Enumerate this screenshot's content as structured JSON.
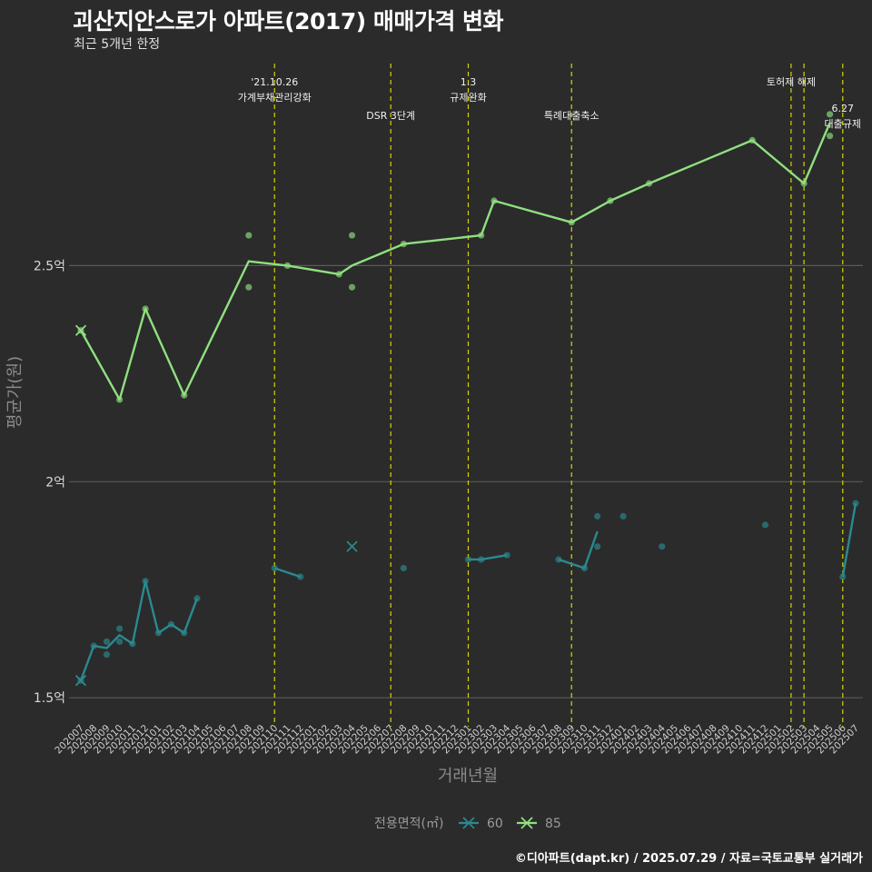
{
  "title": "괴산지안스로가 아파트(2017) 매매가격 변화",
  "subtitle": "최근 5개년 한정",
  "caption": "©디아파트(dapt.kr) / 2025.07.29 / 자료=국토교통부 실거래가",
  "colors": {
    "background": "#2b2b2b",
    "grid": "#5a5a5a",
    "event_line": "#d4d400",
    "series_60": "#2a8a8f",
    "series_85": "#8fe07f"
  },
  "chart_data": {
    "type": "line",
    "title": "괴산지안스로가 아파트(2017) 매매가격 변화",
    "xlabel": "거래년월",
    "ylabel": "평균가(원)",
    "ylim": [
      1.45,
      2.98
    ],
    "y_ticks": [
      {
        "value": 1.5,
        "label": "1.5억"
      },
      {
        "value": 2.0,
        "label": "2억"
      },
      {
        "value": 2.5,
        "label": "2.5억"
      }
    ],
    "categories": [
      "202007",
      "202008",
      "202009",
      "202010",
      "202011",
      "202012",
      "202101",
      "202102",
      "202103",
      "202104",
      "202105",
      "202106",
      "202107",
      "202108",
      "202109",
      "202110",
      "202111",
      "202112",
      "202201",
      "202202",
      "202203",
      "202204",
      "202205",
      "202206",
      "202207",
      "202208",
      "202209",
      "202210",
      "202211",
      "202212",
      "202301",
      "202302",
      "202303",
      "202304",
      "202305",
      "202306",
      "202307",
      "202308",
      "202309",
      "202310",
      "202311",
      "202312",
      "202401",
      "202402",
      "202403",
      "202404",
      "202405",
      "202406",
      "202407",
      "202408",
      "202409",
      "202410",
      "202411",
      "202412",
      "202501",
      "202502",
      "202503",
      "202504",
      "202505",
      "202506",
      "202507"
    ],
    "legend": {
      "title": "전용면적(㎡)",
      "position": "bottom"
    },
    "events": [
      {
        "x": "202110",
        "label_lines": [
          "'21.10.26",
          "가계부채관리강화"
        ],
        "level": 1
      },
      {
        "x": "202207",
        "label_lines": [
          "DSR 3단계"
        ],
        "level": 2
      },
      {
        "x": "202301",
        "label_lines": [
          "1.3",
          "규제완화"
        ],
        "level": 1
      },
      {
        "x": "202309",
        "label_lines": [
          "특례대출축소"
        ],
        "level": 2
      },
      {
        "x": "202502",
        "label_lines": [
          "토허제 해제"
        ],
        "level": 1
      },
      {
        "x": "202503",
        "label_lines": [],
        "level": 0
      },
      {
        "x": "202506",
        "label_lines": [
          "6.27",
          "대출규제"
        ],
        "level": 3
      }
    ],
    "series": [
      {
        "name": "60",
        "segments": [
          [
            [
              "202007",
              1.54
            ],
            [
              "202008",
              1.62
            ],
            [
              "202009",
              1.615
            ],
            [
              "202010",
              1.645
            ],
            [
              "202011",
              1.625
            ],
            [
              "202012",
              1.77
            ],
            [
              "202101",
              1.65
            ],
            [
              "202102",
              1.67
            ],
            [
              "202103",
              1.65
            ],
            [
              "202104",
              1.73
            ]
          ],
          [
            [
              "202110",
              1.8
            ],
            [
              "202112",
              1.78
            ]
          ],
          [
            [
              "202301",
              1.82
            ],
            [
              "202302",
              1.82
            ],
            [
              "202304",
              1.83
            ]
          ],
          [
            [
              "202308",
              1.82
            ],
            [
              "202310",
              1.8
            ],
            [
              "202311",
              1.885
            ]
          ],
          [
            [
              "202506",
              1.78
            ],
            [
              "202507",
              1.95
            ]
          ]
        ],
        "points": [
          [
            "202007",
            1.54
          ],
          [
            "202008",
            1.62
          ],
          [
            "202009",
            1.63
          ],
          [
            "202009",
            1.6
          ],
          [
            "202010",
            1.66
          ],
          [
            "202010",
            1.63
          ],
          [
            "202011",
            1.625
          ],
          [
            "202012",
            1.77
          ],
          [
            "202101",
            1.65
          ],
          [
            "202102",
            1.67
          ],
          [
            "202103",
            1.65
          ],
          [
            "202104",
            1.73
          ],
          [
            "202110",
            1.8
          ],
          [
            "202112",
            1.78
          ],
          [
            "202208",
            1.8
          ],
          [
            "202301",
            1.82
          ],
          [
            "202302",
            1.82
          ],
          [
            "202304",
            1.83
          ],
          [
            "202308",
            1.82
          ],
          [
            "202310",
            1.8
          ],
          [
            "202311",
            1.92
          ],
          [
            "202311",
            1.85
          ],
          [
            "202401",
            1.92
          ],
          [
            "202404",
            1.85
          ],
          [
            "202412",
            1.9
          ],
          [
            "202506",
            1.78
          ],
          [
            "202507",
            1.95
          ]
        ],
        "x_markers": [
          [
            "202007",
            1.54
          ],
          [
            "202204",
            1.85
          ]
        ]
      },
      {
        "name": "85",
        "segments": [
          [
            [
              "202007",
              2.35
            ],
            [
              "202010",
              2.19
            ],
            [
              "202012",
              2.4
            ],
            [
              "202103",
              2.2
            ],
            [
              "202108",
              2.51
            ],
            [
              "202111",
              2.5
            ],
            [
              "202203",
              2.48
            ],
            [
              "202204",
              2.5
            ],
            [
              "202208",
              2.55
            ],
            [
              "202302",
              2.57
            ],
            [
              "202303",
              2.65
            ],
            [
              "202309",
              2.6
            ],
            [
              "202312",
              2.65
            ],
            [
              "202403",
              2.69
            ],
            [
              "202411",
              2.79
            ],
            [
              "202503",
              2.69
            ],
            [
              "202505",
              2.83
            ]
          ]
        ],
        "points": [
          [
            "202007",
            2.35
          ],
          [
            "202010",
            2.19
          ],
          [
            "202012",
            2.4
          ],
          [
            "202103",
            2.2
          ],
          [
            "202108",
            2.57
          ],
          [
            "202108",
            2.45
          ],
          [
            "202111",
            2.5
          ],
          [
            "202203",
            2.48
          ],
          [
            "202204",
            2.57
          ],
          [
            "202204",
            2.45
          ],
          [
            "202208",
            2.55
          ],
          [
            "202302",
            2.57
          ],
          [
            "202303",
            2.65
          ],
          [
            "202309",
            2.6
          ],
          [
            "202312",
            2.65
          ],
          [
            "202403",
            2.69
          ],
          [
            "202411",
            2.79
          ],
          [
            "202503",
            2.69
          ],
          [
            "202505",
            2.85
          ],
          [
            "202505",
            2.8
          ]
        ],
        "x_markers": [
          [
            "202007",
            2.35
          ]
        ]
      }
    ]
  }
}
